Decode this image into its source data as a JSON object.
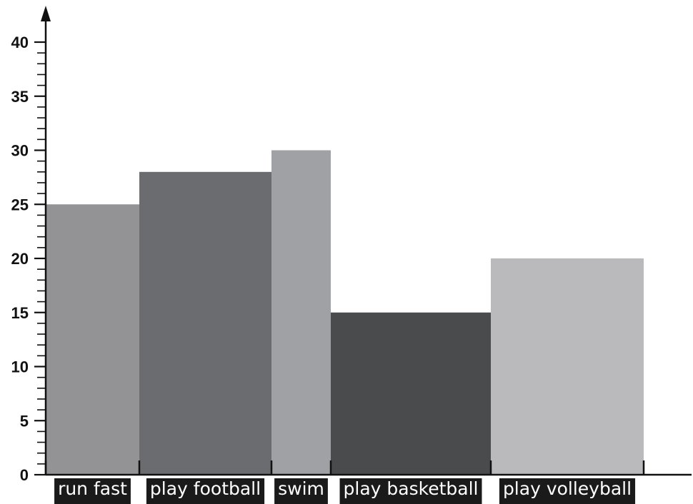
{
  "chart_data": {
    "type": "bar",
    "categories": [
      "run fast",
      "play football",
      "swim",
      "play basketball",
      "play volleyball"
    ],
    "values": [
      25,
      28,
      30,
      15,
      20
    ],
    "title": "",
    "xlabel": "",
    "ylabel": "",
    "ylim": [
      0,
      40
    ],
    "yticks": [
      0,
      5,
      10,
      15,
      20,
      25,
      30,
      35,
      40
    ],
    "ytick_labels": [
      "0",
      "5",
      "10",
      "15",
      "20",
      "25",
      "30",
      "35",
      "40"
    ],
    "minor_tick_step": 1,
    "grid": false,
    "legend": "none",
    "bar_colors": [
      "#939396",
      "#6b6c6f",
      "#a0a1a4",
      "#4a4b4d",
      "#bababd"
    ],
    "label_background": "#1a1a1a",
    "axis_color": "#111111"
  }
}
